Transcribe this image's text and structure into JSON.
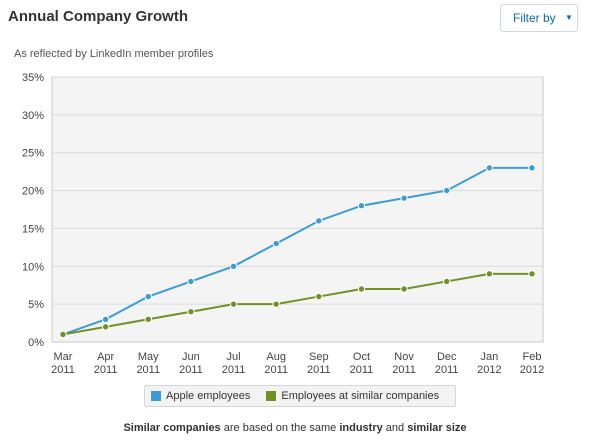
{
  "header": {
    "title": "Annual Company Growth",
    "filter_label": "Filter by",
    "filter_icon": "caret-down-icon"
  },
  "subtitle": "As reflected by LinkedIn member profiles",
  "colors": {
    "apple": "#3b9cd6",
    "similar": "#6f9124",
    "plot_bg": "#f4f4f4",
    "grid": "#d9d9d9"
  },
  "legend": [
    {
      "label": "Apple employees",
      "color": "#3b9cd6"
    },
    {
      "label": "Employees at similar companies",
      "color": "#6f9124"
    }
  ],
  "footnote": {
    "p1": "Similar companies",
    "p2": " are based on the same ",
    "p3": "industry",
    "p4": " and ",
    "p5": "similar size"
  },
  "chart_data": {
    "type": "line",
    "title": "Annual Company Growth",
    "subtitle": "As reflected by LinkedIn member profiles",
    "categories": [
      [
        "Mar",
        "2011"
      ],
      [
        "Apr",
        "2011"
      ],
      [
        "May",
        "2011"
      ],
      [
        "Jun",
        "2011"
      ],
      [
        "Jul",
        "2011"
      ],
      [
        "Aug",
        "2011"
      ],
      [
        "Sep",
        "2011"
      ],
      [
        "Oct",
        "2011"
      ],
      [
        "Nov",
        "2011"
      ],
      [
        "Dec",
        "2011"
      ],
      [
        "Jan",
        "2012"
      ],
      [
        "Feb",
        "2012"
      ]
    ],
    "series": [
      {
        "name": "Apple employees",
        "values": [
          1,
          3,
          6,
          8,
          10,
          13,
          16,
          18,
          19,
          20,
          23,
          23
        ]
      },
      {
        "name": "Employees at similar companies",
        "values": [
          1,
          2,
          3,
          4,
          5,
          5,
          6,
          7,
          7,
          8,
          9,
          9
        ]
      }
    ],
    "yticks": [
      "0%",
      "5%",
      "10%",
      "15%",
      "20%",
      "25%",
      "30%",
      "35%"
    ],
    "ylim": [
      0,
      35
    ],
    "grid": true,
    "legend_position": "bottom"
  }
}
